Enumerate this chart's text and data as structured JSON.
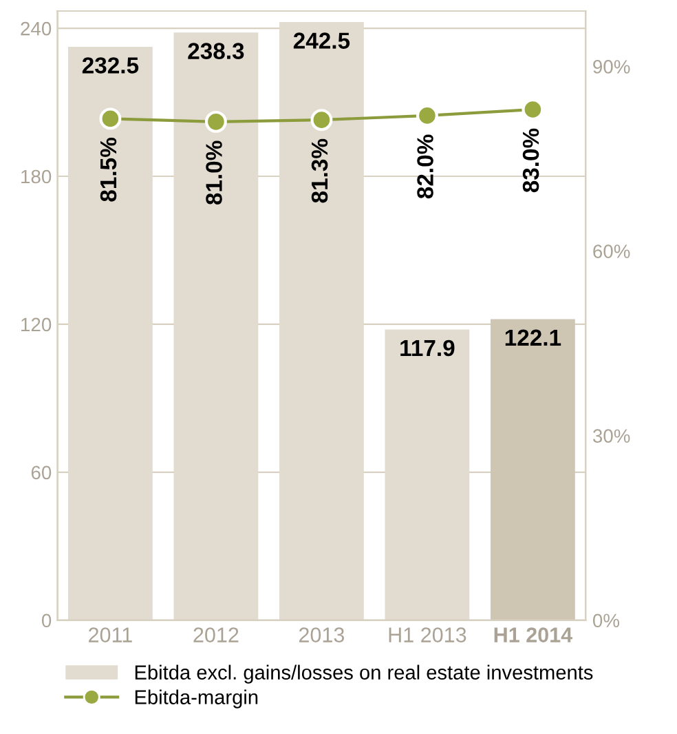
{
  "chart_data": {
    "type": "bar",
    "categories": [
      "2011",
      "2012",
      "2013",
      "H1 2013",
      "H1 2014"
    ],
    "series": [
      {
        "name": "Ebitda excl. gains/losses on real estate investments",
        "colors": [
          "#e2dbcf",
          "#e2dbcf",
          "#e2dbcf",
          "#e2dbcf",
          "#cfc5b3"
        ],
        "color": "#e2dbcf",
        "values": [
          232.5,
          238.3,
          242.5,
          117.9,
          122.1
        ]
      },
      {
        "name": "Ebitda-margin",
        "type": "line",
        "axis": "y2",
        "color": "#8c9c3c",
        "marker": "circle",
        "values": [
          81.5,
          81.0,
          81.3,
          82.0,
          83.0
        ],
        "value_labels": [
          "81.5%",
          "81.0%",
          "81.3%",
          "82.0%",
          "83.0%"
        ]
      }
    ],
    "data_labels": true,
    "ylim": [
      0,
      247
    ],
    "yticks": [
      0,
      60,
      120,
      180,
      240
    ],
    "y2lim": [
      0,
      99
    ],
    "y2ticks": [
      {
        "value": 0,
        "label": "0%"
      },
      {
        "value": 30,
        "label": "30%"
      },
      {
        "value": 60,
        "label": "60%"
      },
      {
        "value": 90,
        "label": "90%"
      }
    ],
    "grid": "y",
    "legend": "bottom"
  }
}
